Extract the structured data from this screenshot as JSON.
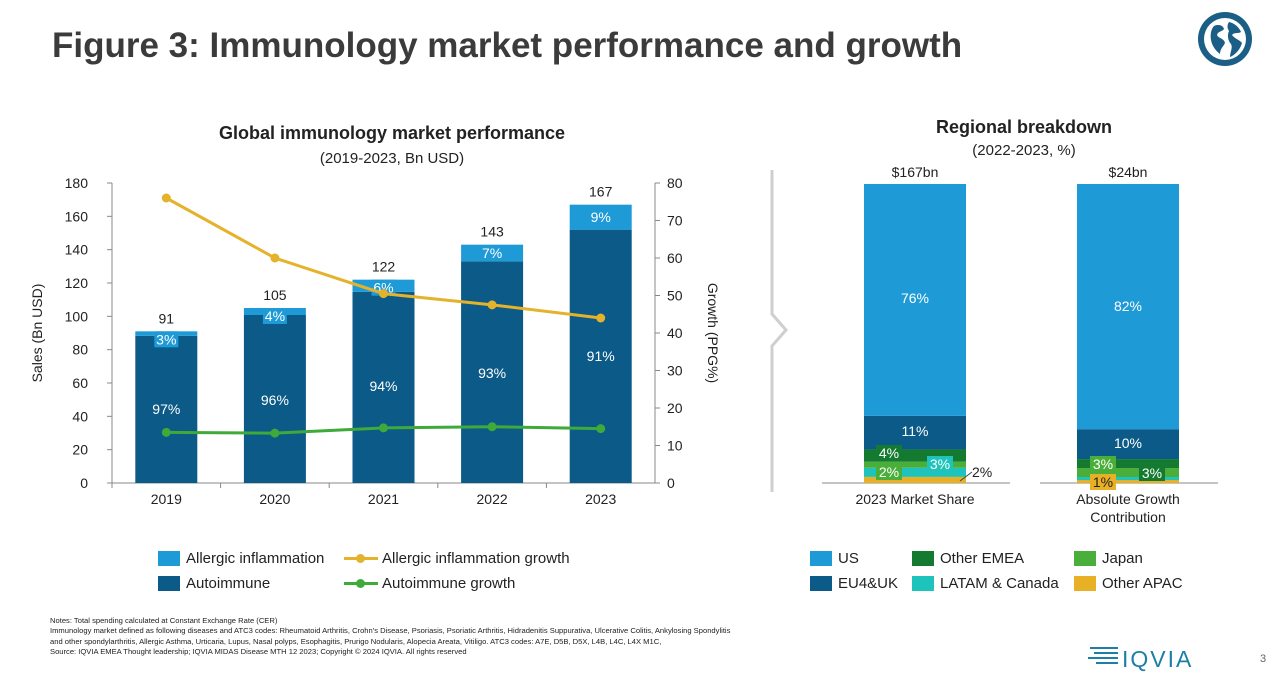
{
  "page": {
    "title": "Figure 3: Immunology market performance and growth",
    "page_number": "3",
    "logo_text": "IQVIA"
  },
  "notes": [
    "Notes: Total spending calculated at Constant Exchange Rate (CER)",
    "Immunology market defined as following diseases and ATC3 codes: Rheumatoid Arthritis, Crohn's Disease, Psoriasis, Psoriatic Arthritis, Hidradenitis Suppurativa, Ulcerative Colitis, Ankylosing Spondylitis",
    "and other spondylarthritis, Allergic Asthma, Urticaria, Lupus, Nasal polyps, Esophagitis, Prurigo Nodularis, Alopecia Areata, Vitiligo. ATC3 codes: A7E, D5B, D5X, L4B, L4C, L4X M1C,",
    "Source: IQVIA EMEA Thought leadership; IQVIA MIDAS Disease MTH 12 2023; Copyright © 2024 IQVIA. All rights reserved"
  ],
  "colors": {
    "allergic": "#1e9ad6",
    "autoimmune": "#0b5a87",
    "allergic_growth": "#e5b22c",
    "autoimmune_growth": "#3daa3a",
    "us": "#1e9ad6",
    "eu4uk": "#0b5a87",
    "other_emea": "#137a2f",
    "japan": "#49ae3a",
    "latam_canada": "#1ec4bb",
    "other_apac": "#e8b024"
  },
  "chart_data": [
    {
      "type": "bar",
      "title": "Global immunology market performance",
      "subtitle": "(2019-2023, Bn USD)",
      "ylabel": "Sales (Bn USD)",
      "y2label": "Growth (PPG%)",
      "ylim": [
        0,
        180
      ],
      "yticks": [
        "0",
        "20",
        "40",
        "60",
        "80",
        "100",
        "120",
        "140",
        "160",
        "180"
      ],
      "y2lim": [
        0,
        80
      ],
      "y2ticks": [
        "0",
        "10",
        "20",
        "30",
        "40",
        "50",
        "60",
        "70",
        "80"
      ],
      "categories": [
        "2019",
        "2020",
        "2021",
        "2022",
        "2023"
      ],
      "totals": [
        91,
        105,
        122,
        143,
        167
      ],
      "total_labels": [
        "91",
        "105",
        "122",
        "143",
        "167"
      ],
      "series": [
        {
          "name": "Autoimmune",
          "values": [
            88.3,
            100.8,
            114.7,
            133.0,
            152.0
          ],
          "labels": [
            "97%",
            "96%",
            "94%",
            "93%",
            "91%"
          ]
        },
        {
          "name": "Allergic inflammation",
          "values": [
            2.7,
            4.2,
            7.3,
            10.0,
            15.0
          ],
          "labels": [
            "3%",
            "4%",
            "6%",
            "7%",
            "9%"
          ]
        }
      ],
      "lines": [
        {
          "name": "Allergic inflammation growth",
          "values": [
            76,
            60,
            50.5,
            47.5,
            44
          ]
        },
        {
          "name": "Autoimmune growth",
          "values": [
            13.5,
            13.3,
            14.7,
            15.0,
            14.5
          ]
        }
      ],
      "legend": {
        "items": [
          "Allergic inflammation",
          "Allergic inflammation growth",
          "Autoimmune",
          "Autoimmune growth"
        ],
        "placement": "bottom"
      }
    },
    {
      "type": "bar",
      "stacked_percent": true,
      "title": "Regional breakdown",
      "subtitle": "(2022-2023, %)",
      "categories": [
        "2023 Market Share",
        "Absolute Growth Contribution"
      ],
      "category_lines": [
        [
          "2023 Market Share"
        ],
        [
          "Absolute Growth",
          "Contribution"
        ]
      ],
      "totals": [
        "$167bn",
        "$24bn"
      ],
      "series": [
        {
          "name": "Other APAC",
          "values": [
            2,
            1
          ],
          "labels": [
            "",
            "1%"
          ]
        },
        {
          "name": "LATAM & Canada",
          "values": [
            3,
            1
          ],
          "labels": [
            "3%",
            ""
          ]
        },
        {
          "name": "Japan",
          "values": [
            2,
            3
          ],
          "labels": [
            "2%",
            "3%"
          ]
        },
        {
          "name": "Other EMEA",
          "values": [
            4,
            3
          ],
          "labels": [
            "4%",
            "3%"
          ]
        },
        {
          "name": "EU4&UK",
          "values": [
            11,
            10
          ],
          "labels": [
            "11%",
            "10%"
          ]
        },
        {
          "name": "US",
          "values": [
            76,
            82
          ],
          "labels": [
            "76%",
            "82%"
          ]
        }
      ],
      "callout": "2%",
      "legend": {
        "items": [
          "US",
          "Other EMEA",
          "Japan",
          "EU4&UK",
          "LATAM & Canada",
          "Other APAC"
        ],
        "placement": "bottom"
      }
    }
  ]
}
